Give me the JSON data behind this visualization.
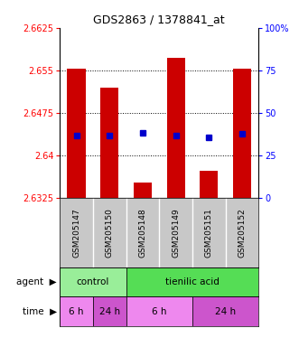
{
  "title": "GDS2863 / 1378841_at",
  "samples": [
    "GSM205147",
    "GSM205150",
    "GSM205148",
    "GSM205149",
    "GSM205151",
    "GSM205152"
  ],
  "bar_bottoms": [
    2.6325,
    2.6325,
    2.6325,
    2.6325,
    2.6325,
    2.6325
  ],
  "bar_tops": [
    2.6553,
    2.652,
    2.6352,
    2.6572,
    2.6372,
    2.6553
  ],
  "percentile_values": [
    2.6435,
    2.6435,
    2.644,
    2.6435,
    2.6432,
    2.6438
  ],
  "ylim_left": [
    2.6325,
    2.6625
  ],
  "ylim_right": [
    0,
    100
  ],
  "yticks_left": [
    2.6325,
    2.64,
    2.6475,
    2.655,
    2.6625
  ],
  "ytick_labels_left": [
    "2.6325",
    "2.64",
    "2.6475",
    "2.655",
    "2.6625"
  ],
  "yticks_right": [
    0,
    25,
    50,
    75,
    100
  ],
  "ytick_labels_right": [
    "0",
    "25",
    "50",
    "75",
    "100%"
  ],
  "bar_color": "#cc0000",
  "marker_color": "#0000cc",
  "bg_color_samples": "#c8c8c8",
  "agent_groups": [
    {
      "label": "control",
      "start": 0,
      "end": 2,
      "color": "#99ee99"
    },
    {
      "label": "tienilic acid",
      "start": 2,
      "end": 6,
      "color": "#55dd55"
    }
  ],
  "time_groups": [
    {
      "label": "6 h",
      "start": 0,
      "end": 1,
      "color": "#ee88ee"
    },
    {
      "label": "24 h",
      "start": 1,
      "end": 2,
      "color": "#cc55cc"
    },
    {
      "label": "6 h",
      "start": 2,
      "end": 4,
      "color": "#ee88ee"
    },
    {
      "label": "24 h",
      "start": 4,
      "end": 6,
      "color": "#cc55cc"
    }
  ]
}
